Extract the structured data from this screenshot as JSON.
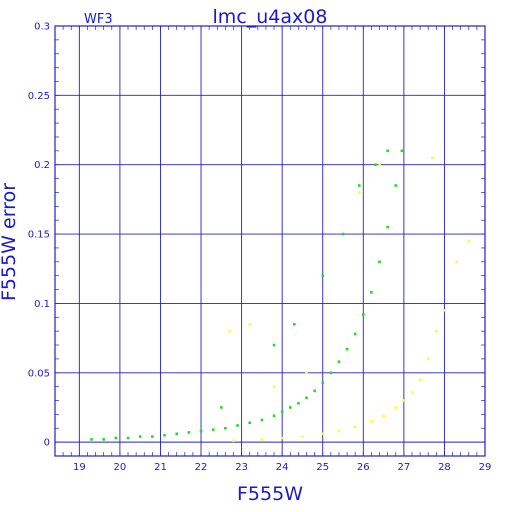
{
  "chart_data": {
    "type": "scatter",
    "title": "lmc_u4ax08",
    "subtitle": "WF3",
    "xlabel": "F555W",
    "ylabel": "F555W error",
    "xlim": [
      18.4,
      29.0
    ],
    "ylim": [
      -0.01,
      0.3
    ],
    "xticks": [
      19,
      20,
      21,
      22,
      23,
      24,
      25,
      26,
      27,
      28,
      29
    ],
    "xtick_labels": [
      "19",
      "20",
      "21",
      "22",
      "23",
      "24",
      "25",
      "26",
      "27",
      "28",
      "29"
    ],
    "yticks": [
      0,
      0.05,
      0.1,
      0.15,
      0.2,
      0.25,
      0.3
    ],
    "ytick_labels": [
      "0",
      "0.05",
      "0.1",
      "0.15",
      "0.2",
      "0.25",
      "0.3"
    ],
    "grid": true,
    "legend": "none",
    "series": [
      {
        "color": "#22dd22",
        "points": [
          [
            19.3,
            0.002
          ],
          [
            19.6,
            0.002
          ],
          [
            19.9,
            0.003
          ],
          [
            20.2,
            0.003
          ],
          [
            20.5,
            0.004
          ],
          [
            20.8,
            0.004
          ],
          [
            21.1,
            0.005
          ],
          [
            21.4,
            0.006
          ],
          [
            21.7,
            0.007
          ],
          [
            22.0,
            0.008
          ],
          [
            22.3,
            0.009
          ],
          [
            22.6,
            0.01
          ],
          [
            22.9,
            0.012
          ],
          [
            23.2,
            0.014
          ],
          [
            23.5,
            0.016
          ],
          [
            23.8,
            0.019
          ],
          [
            24.0,
            0.022
          ],
          [
            24.2,
            0.025
          ],
          [
            24.4,
            0.028
          ],
          [
            24.6,
            0.032
          ],
          [
            24.8,
            0.037
          ],
          [
            25.0,
            0.043
          ],
          [
            25.2,
            0.05
          ],
          [
            25.4,
            0.058
          ],
          [
            25.6,
            0.067
          ],
          [
            25.8,
            0.078
          ],
          [
            26.0,
            0.092
          ],
          [
            26.2,
            0.108
          ],
          [
            26.4,
            0.13
          ],
          [
            26.6,
            0.155
          ],
          [
            26.8,
            0.185
          ],
          [
            26.95,
            0.21
          ],
          [
            26.6,
            0.21
          ],
          [
            26.3,
            0.2
          ],
          [
            25.9,
            0.185
          ],
          [
            25.5,
            0.15
          ],
          [
            25.0,
            0.12
          ],
          [
            24.3,
            0.085
          ],
          [
            23.8,
            0.07
          ],
          [
            22.5,
            0.025
          ]
        ]
      },
      {
        "color": "#ffff22",
        "points": [
          [
            22.8,
            0.001
          ],
          [
            23.5,
            0.002
          ],
          [
            24.0,
            0.003
          ],
          [
            24.5,
            0.004
          ],
          [
            25.0,
            0.006
          ],
          [
            25.4,
            0.008
          ],
          [
            25.8,
            0.011
          ],
          [
            26.2,
            0.015
          ],
          [
            26.5,
            0.019
          ],
          [
            26.8,
            0.025
          ],
          [
            27.0,
            0.03
          ],
          [
            27.2,
            0.036
          ],
          [
            27.4,
            0.045
          ],
          [
            27.6,
            0.06
          ],
          [
            27.8,
            0.08
          ],
          [
            28.0,
            0.095
          ],
          [
            28.3,
            0.13
          ],
          [
            28.6,
            0.145
          ],
          [
            27.7,
            0.205
          ],
          [
            26.4,
            0.2
          ],
          [
            25.9,
            0.18
          ],
          [
            23.2,
            0.085
          ],
          [
            22.7,
            0.08
          ],
          [
            24.6,
            0.05
          ],
          [
            23.8,
            0.04
          ]
        ]
      }
    ]
  }
}
